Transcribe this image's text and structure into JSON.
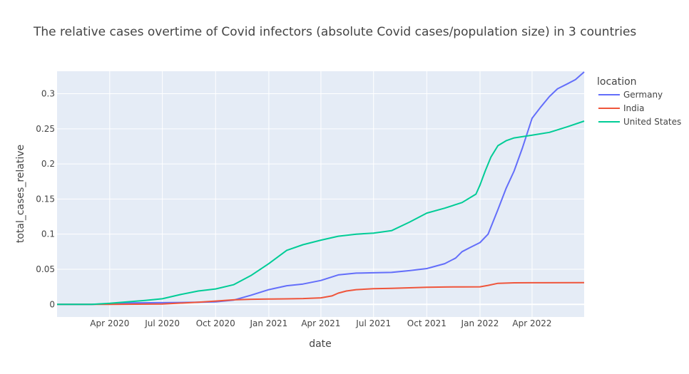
{
  "chart_data": {
    "type": "line",
    "title": "The relative cases overtime of Covid infectors (absolute Covid cases/population size) in 3 countries",
    "xlabel": "date",
    "ylabel": "total_cases_relative",
    "x_range": [
      "2020-01-01",
      "2022-06-30"
    ],
    "y_range": [
      -0.018,
      0.332
    ],
    "x_ticks": [
      {
        "label": "Apr 2020",
        "date": "2020-04-01"
      },
      {
        "label": "Jul 2020",
        "date": "2020-07-01"
      },
      {
        "label": "Oct 2020",
        "date": "2020-10-01"
      },
      {
        "label": "Jan 2021",
        "date": "2021-01-01"
      },
      {
        "label": "Apr 2021",
        "date": "2021-04-01"
      },
      {
        "label": "Jul 2021",
        "date": "2021-07-01"
      },
      {
        "label": "Oct 2021",
        "date": "2021-10-01"
      },
      {
        "label": "Jan 2022",
        "date": "2022-01-01"
      },
      {
        "label": "Apr 2022",
        "date": "2022-04-01"
      }
    ],
    "y_ticks": [
      {
        "label": "0",
        "value": 0
      },
      {
        "label": "0.05",
        "value": 0.05
      },
      {
        "label": "0.1",
        "value": 0.1
      },
      {
        "label": "0.15",
        "value": 0.15
      },
      {
        "label": "0.2",
        "value": 0.2
      },
      {
        "label": "0.25",
        "value": 0.25
      },
      {
        "label": "0.3",
        "value": 0.3
      }
    ],
    "grid": true,
    "legend": {
      "title": "location",
      "placement": "top-right"
    },
    "series": [
      {
        "name": "Germany",
        "color": "#636efa",
        "points": [
          [
            "2020-01-01",
            0
          ],
          [
            "2020-03-01",
            0.0001
          ],
          [
            "2020-04-01",
            0.0009
          ],
          [
            "2020-05-01",
            0.002
          ],
          [
            "2020-07-01",
            0.0024
          ],
          [
            "2020-09-01",
            0.003
          ],
          [
            "2020-10-01",
            0.0035
          ],
          [
            "2020-11-01",
            0.006
          ],
          [
            "2020-12-01",
            0.013
          ],
          [
            "2021-01-01",
            0.021
          ],
          [
            "2021-02-01",
            0.0265
          ],
          [
            "2021-03-01",
            0.029
          ],
          [
            "2021-04-01",
            0.034
          ],
          [
            "2021-05-01",
            0.042
          ],
          [
            "2021-06-01",
            0.0445
          ],
          [
            "2021-07-01",
            0.045
          ],
          [
            "2021-08-01",
            0.0455
          ],
          [
            "2021-09-01",
            0.048
          ],
          [
            "2021-10-01",
            0.051
          ],
          [
            "2021-11-01",
            0.058
          ],
          [
            "2021-11-20",
            0.066
          ],
          [
            "2021-12-01",
            0.075
          ],
          [
            "2021-12-15",
            0.081
          ],
          [
            "2022-01-01",
            0.088
          ],
          [
            "2022-01-15",
            0.1
          ],
          [
            "2022-02-01",
            0.135
          ],
          [
            "2022-02-15",
            0.165
          ],
          [
            "2022-03-01",
            0.19
          ],
          [
            "2022-03-15",
            0.222
          ],
          [
            "2022-04-01",
            0.265
          ],
          [
            "2022-04-15",
            0.28
          ],
          [
            "2022-05-01",
            0.296
          ],
          [
            "2022-05-15",
            0.307
          ],
          [
            "2022-06-01",
            0.314
          ],
          [
            "2022-06-15",
            0.32
          ],
          [
            "2022-06-30",
            0.331
          ]
        ]
      },
      {
        "name": "India",
        "color": "#ef553b",
        "points": [
          [
            "2020-01-01",
            0
          ],
          [
            "2020-04-01",
            0.0001
          ],
          [
            "2020-07-01",
            0.0006
          ],
          [
            "2020-09-01",
            0.003
          ],
          [
            "2020-10-01",
            0.0047
          ],
          [
            "2020-11-01",
            0.0064
          ],
          [
            "2020-12-01",
            0.0073
          ],
          [
            "2021-01-01",
            0.0076
          ],
          [
            "2021-02-01",
            0.0079
          ],
          [
            "2021-03-01",
            0.0083
          ],
          [
            "2021-04-01",
            0.0093
          ],
          [
            "2021-04-20",
            0.012
          ],
          [
            "2021-05-01",
            0.016
          ],
          [
            "2021-05-15",
            0.019
          ],
          [
            "2021-06-01",
            0.021
          ],
          [
            "2021-07-01",
            0.0223
          ],
          [
            "2021-08-01",
            0.0229
          ],
          [
            "2021-09-01",
            0.0236
          ],
          [
            "2021-10-01",
            0.0243
          ],
          [
            "2021-11-01",
            0.0247
          ],
          [
            "2021-12-01",
            0.0249
          ],
          [
            "2022-01-01",
            0.025
          ],
          [
            "2022-01-15",
            0.027
          ],
          [
            "2022-02-01",
            0.03
          ],
          [
            "2022-03-01",
            0.0307
          ],
          [
            "2022-04-01",
            0.0308
          ],
          [
            "2022-06-30",
            0.031
          ]
        ]
      },
      {
        "name": "United States",
        "color": "#00cc96",
        "points": [
          [
            "2020-01-01",
            0
          ],
          [
            "2020-03-01",
            0.0001
          ],
          [
            "2020-04-01",
            0.0015
          ],
          [
            "2020-05-01",
            0.0035
          ],
          [
            "2020-06-01",
            0.0055
          ],
          [
            "2020-07-01",
            0.008
          ],
          [
            "2020-08-01",
            0.014
          ],
          [
            "2020-09-01",
            0.019
          ],
          [
            "2020-10-01",
            0.022
          ],
          [
            "2020-11-01",
            0.028
          ],
          [
            "2020-12-01",
            0.041
          ],
          [
            "2021-01-01",
            0.058
          ],
          [
            "2021-02-01",
            0.077
          ],
          [
            "2021-03-01",
            0.085
          ],
          [
            "2021-04-01",
            0.0915
          ],
          [
            "2021-05-01",
            0.097
          ],
          [
            "2021-06-01",
            0.1
          ],
          [
            "2021-07-01",
            0.1015
          ],
          [
            "2021-08-01",
            0.105
          ],
          [
            "2021-09-01",
            0.117
          ],
          [
            "2021-10-01",
            0.13
          ],
          [
            "2021-11-01",
            0.137
          ],
          [
            "2021-12-01",
            0.145
          ],
          [
            "2021-12-25",
            0.157
          ],
          [
            "2022-01-01",
            0.17
          ],
          [
            "2022-01-10",
            0.19
          ],
          [
            "2022-01-20",
            0.21
          ],
          [
            "2022-02-01",
            0.226
          ],
          [
            "2022-02-15",
            0.233
          ],
          [
            "2022-03-01",
            0.237
          ],
          [
            "2022-04-01",
            0.241
          ],
          [
            "2022-05-01",
            0.245
          ],
          [
            "2022-06-01",
            0.253
          ],
          [
            "2022-06-30",
            0.261
          ]
        ]
      }
    ]
  }
}
